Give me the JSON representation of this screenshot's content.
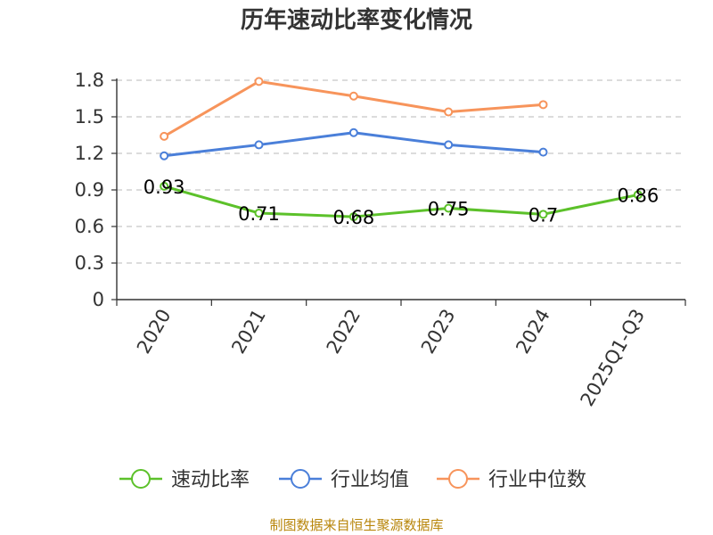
{
  "chart_data": {
    "type": "line",
    "title": "历年速动比率变化情况",
    "categories": [
      "2020",
      "2021",
      "2022",
      "2023",
      "2024",
      "2025Q1-Q3"
    ],
    "y_ticks": [
      "0",
      "0.3",
      "0.6",
      "0.9",
      "1.2",
      "1.5",
      "1.8"
    ],
    "ylim": [
      0,
      1.8
    ],
    "grid": true,
    "legend_position": "bottom",
    "series": [
      {
        "name": "速动比率",
        "color": "#5cc12a",
        "values": [
          0.93,
          0.71,
          0.68,
          0.75,
          0.7,
          0.86
        ],
        "labels": [
          "0.93",
          "0.71",
          "0.68",
          "0.75",
          "0.7",
          "0.86"
        ]
      },
      {
        "name": "行业均值",
        "color": "#4a7fd9",
        "values": [
          1.18,
          1.27,
          1.37,
          1.27,
          1.21,
          null
        ]
      },
      {
        "name": "行业中位数",
        "color": "#f7945b",
        "values": [
          1.34,
          1.79,
          1.67,
          1.54,
          1.6,
          null
        ]
      }
    ]
  },
  "source": "制图数据来自恒生聚源数据库"
}
